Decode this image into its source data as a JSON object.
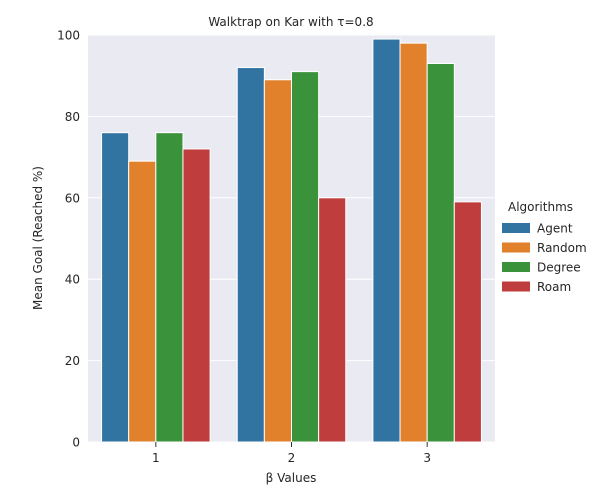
{
  "chart_data": {
    "type": "bar",
    "title": "Walktrap on Kar with τ=0.8",
    "xlabel": "β Values",
    "ylabel": "Mean Goal (Reached %)",
    "categories": [
      "1",
      "2",
      "3"
    ],
    "ylim": [
      0,
      100
    ],
    "yticks": [
      "0",
      "20",
      "40",
      "60",
      "80",
      "100"
    ],
    "grid": true,
    "legend_title": "Algorithms",
    "legend_position": "right",
    "series": [
      {
        "name": "Agent",
        "color": "#3274a1",
        "values": [
          76,
          92,
          99
        ]
      },
      {
        "name": "Random",
        "color": "#e1812c",
        "values": [
          69,
          89,
          98
        ]
      },
      {
        "name": "Degree",
        "color": "#3a923a",
        "values": [
          76,
          91,
          93
        ]
      },
      {
        "name": "Roam",
        "color": "#c03d3e",
        "values": [
          72,
          60,
          59
        ]
      }
    ]
  }
}
